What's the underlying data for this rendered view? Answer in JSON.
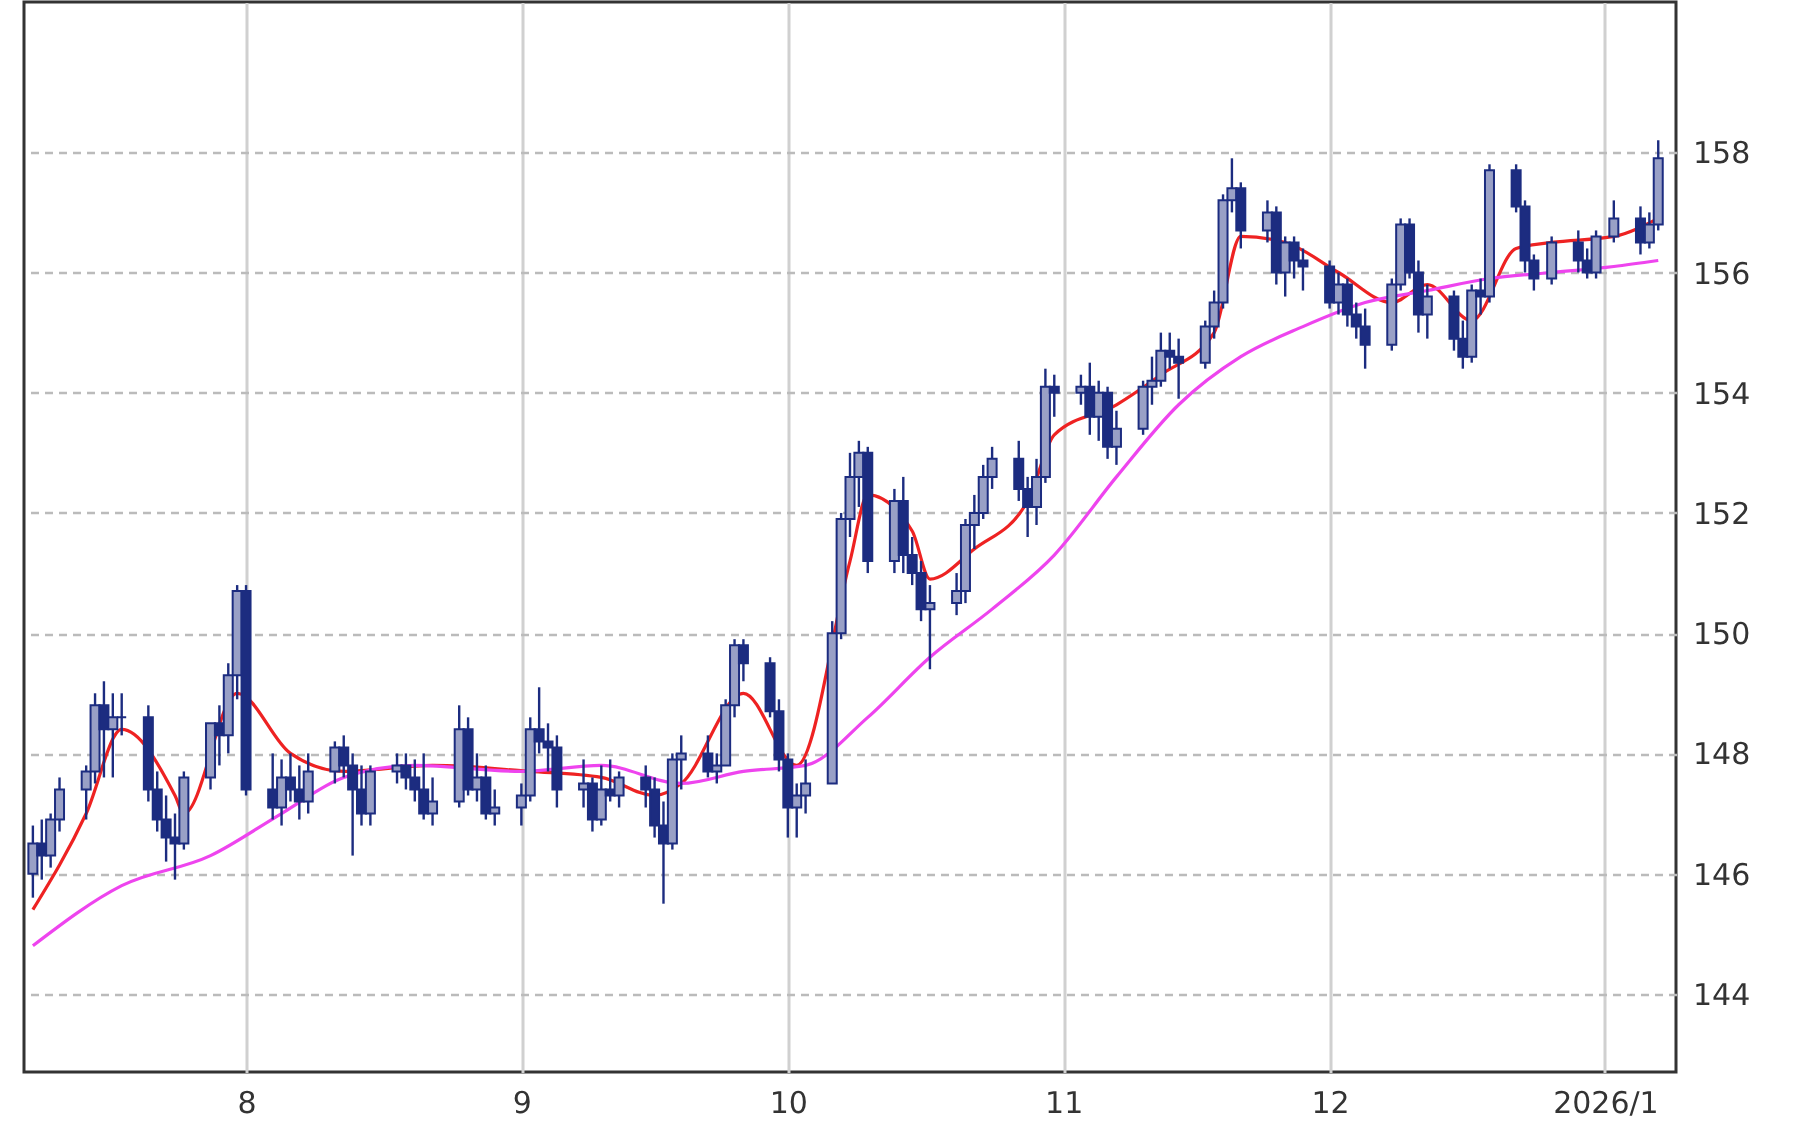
{
  "chart_data": {
    "type": "candlestick",
    "x": [
      "2025-07-08",
      "2025-07-09",
      "2025-07-10",
      "2025-07-11",
      "2025-07-14",
      "2025-07-15",
      "2025-07-16",
      "2025-07-17",
      "2025-07-18",
      "2025-07-21",
      "2025-07-22",
      "2025-07-23",
      "2025-07-24",
      "2025-07-25",
      "2025-07-28",
      "2025-07-29",
      "2025-07-30",
      "2025-07-31",
      "2025-08-01",
      "2025-08-04",
      "2025-08-05",
      "2025-08-06",
      "2025-08-07",
      "2025-08-08",
      "2025-08-11",
      "2025-08-12",
      "2025-08-13",
      "2025-08-14",
      "2025-08-15",
      "2025-08-18",
      "2025-08-19",
      "2025-08-20",
      "2025-08-21",
      "2025-08-22",
      "2025-08-25",
      "2025-08-26",
      "2025-08-27",
      "2025-08-28",
      "2025-08-29",
      "2025-09-01",
      "2025-09-02",
      "2025-09-03",
      "2025-09-04",
      "2025-09-05",
      "2025-09-08",
      "2025-09-09",
      "2025-09-10",
      "2025-09-11",
      "2025-09-12",
      "2025-09-15",
      "2025-09-16",
      "2025-09-17",
      "2025-09-18",
      "2025-09-19",
      "2025-09-22",
      "2025-09-23",
      "2025-09-24",
      "2025-09-25",
      "2025-09-26",
      "2025-09-29",
      "2025-09-30",
      "2025-10-01",
      "2025-10-02",
      "2025-10-03",
      "2025-10-06",
      "2025-10-07",
      "2025-10-08",
      "2025-10-09",
      "2025-10-10",
      "2025-10-13",
      "2025-10-14",
      "2025-10-15",
      "2025-10-16",
      "2025-10-17",
      "2025-10-20",
      "2025-10-21",
      "2025-10-22",
      "2025-10-23",
      "2025-10-24",
      "2025-10-27",
      "2025-10-28",
      "2025-10-29",
      "2025-10-30",
      "2025-10-31",
      "2025-11-03",
      "2025-11-04",
      "2025-11-05",
      "2025-11-06",
      "2025-11-07",
      "2025-11-10",
      "2025-11-11",
      "2025-11-12",
      "2025-11-13",
      "2025-11-14",
      "2025-11-17",
      "2025-11-18",
      "2025-11-19",
      "2025-11-20",
      "2025-11-21",
      "2025-11-24",
      "2025-11-25",
      "2025-11-26",
      "2025-11-27",
      "2025-11-28",
      "2025-12-01",
      "2025-12-02",
      "2025-12-03",
      "2025-12-04",
      "2025-12-05",
      "2025-12-08",
      "2025-12-09",
      "2025-12-10",
      "2025-12-11",
      "2025-12-12",
      "2025-12-15",
      "2025-12-16",
      "2025-12-17",
      "2025-12-18",
      "2025-12-19",
      "2025-12-22",
      "2025-12-23",
      "2025-12-24",
      "2025-12-26",
      "2025-12-29",
      "2025-12-30",
      "2025-12-31",
      "2026-01-02",
      "2026-01-05",
      "2026-01-06",
      "2026-01-07"
    ],
    "ohlc": [
      [
        146.0,
        146.8,
        145.6,
        146.5
      ],
      [
        146.5,
        146.9,
        145.9,
        146.3
      ],
      [
        146.3,
        147.0,
        146.1,
        146.9
      ],
      [
        146.9,
        147.6,
        146.7,
        147.4
      ],
      [
        147.4,
        147.8,
        146.9,
        147.7
      ],
      [
        147.7,
        149.0,
        147.5,
        148.8
      ],
      [
        148.8,
        149.2,
        147.6,
        148.4
      ],
      [
        148.4,
        149.0,
        147.6,
        148.6
      ],
      [
        148.6,
        149.0,
        148.3,
        148.6
      ],
      [
        148.6,
        148.8,
        147.2,
        147.4
      ],
      [
        147.4,
        147.7,
        146.7,
        146.9
      ],
      [
        146.9,
        147.3,
        146.2,
        146.6
      ],
      [
        146.6,
        147.0,
        145.9,
        146.5
      ],
      [
        146.5,
        147.7,
        146.4,
        147.6
      ],
      [
        147.6,
        148.5,
        147.4,
        148.5
      ],
      [
        148.5,
        148.8,
        147.8,
        148.3
      ],
      [
        148.3,
        149.5,
        148.0,
        149.3
      ],
      [
        149.3,
        150.8,
        148.9,
        150.7
      ],
      [
        150.7,
        150.8,
        147.3,
        147.4
      ],
      [
        147.4,
        148.0,
        146.9,
        147.1
      ],
      [
        147.1,
        147.9,
        146.8,
        147.6
      ],
      [
        147.6,
        148.0,
        147.2,
        147.4
      ],
      [
        147.4,
        147.8,
        146.9,
        147.2
      ],
      [
        147.2,
        148.0,
        147.0,
        147.7
      ],
      [
        147.7,
        148.2,
        147.5,
        148.1
      ],
      [
        148.1,
        148.3,
        147.6,
        147.8
      ],
      [
        147.8,
        148.0,
        146.3,
        147.4
      ],
      [
        147.4,
        147.8,
        146.8,
        147.0
      ],
      [
        147.0,
        147.8,
        146.8,
        147.7
      ],
      [
        147.7,
        148.0,
        147.5,
        147.8
      ],
      [
        147.8,
        148.0,
        147.4,
        147.6
      ],
      [
        147.6,
        147.9,
        147.2,
        147.4
      ],
      [
        147.4,
        148.0,
        146.9,
        147.0
      ],
      [
        147.0,
        147.6,
        146.8,
        147.2
      ],
      [
        147.2,
        148.8,
        147.1,
        148.4
      ],
      [
        148.4,
        148.6,
        147.3,
        147.4
      ],
      [
        147.4,
        148.0,
        147.2,
        147.6
      ],
      [
        147.6,
        147.8,
        146.9,
        147.0
      ],
      [
        147.0,
        147.4,
        146.8,
        147.1
      ],
      [
        147.1,
        147.5,
        146.8,
        147.3
      ],
      [
        147.3,
        148.6,
        147.2,
        148.4
      ],
      [
        148.4,
        149.1,
        148.0,
        148.2
      ],
      [
        148.2,
        148.5,
        147.7,
        148.1
      ],
      [
        148.1,
        148.3,
        147.1,
        147.4
      ],
      [
        147.4,
        147.9,
        147.1,
        147.5
      ],
      [
        147.5,
        147.6,
        146.7,
        146.9
      ],
      [
        146.9,
        147.8,
        146.8,
        147.4
      ],
      [
        147.4,
        147.9,
        147.2,
        147.3
      ],
      [
        147.3,
        147.7,
        147.1,
        147.6
      ],
      [
        147.6,
        147.8,
        147.1,
        147.4
      ],
      [
        147.4,
        147.6,
        146.6,
        146.8
      ],
      [
        146.8,
        147.2,
        145.5,
        146.5
      ],
      [
        146.5,
        148.0,
        146.4,
        147.9
      ],
      [
        147.9,
        148.3,
        147.4,
        148.0
      ],
      [
        148.0,
        148.3,
        147.6,
        147.7
      ],
      [
        147.7,
        148.0,
        147.5,
        147.8
      ],
      [
        147.8,
        148.9,
        147.8,
        148.8
      ],
      [
        148.8,
        149.9,
        148.6,
        149.8
      ],
      [
        149.8,
        149.9,
        149.2,
        149.5
      ],
      [
        149.5,
        149.6,
        148.6,
        148.7
      ],
      [
        148.7,
        148.9,
        147.7,
        147.9
      ],
      [
        147.9,
        148.0,
        146.6,
        147.1
      ],
      [
        147.1,
        147.5,
        146.6,
        147.3
      ],
      [
        147.3,
        147.9,
        147.0,
        147.5
      ],
      [
        147.5,
        150.2,
        147.5,
        150.0
      ],
      [
        150.0,
        152.0,
        149.9,
        151.9
      ],
      [
        151.9,
        153.0,
        151.6,
        152.6
      ],
      [
        152.6,
        153.2,
        152.1,
        153.0
      ],
      [
        153.0,
        153.1,
        151.0,
        151.2
      ],
      [
        151.2,
        152.4,
        151.0,
        152.2
      ],
      [
        152.2,
        152.6,
        151.0,
        151.3
      ],
      [
        151.3,
        151.6,
        150.8,
        151.0
      ],
      [
        151.0,
        151.2,
        150.2,
        150.4
      ],
      [
        150.4,
        150.8,
        149.4,
        150.5
      ],
      [
        150.5,
        151.0,
        150.3,
        150.7
      ],
      [
        150.7,
        151.9,
        150.5,
        151.8
      ],
      [
        151.8,
        152.3,
        151.4,
        152.0
      ],
      [
        152.0,
        152.8,
        151.9,
        152.6
      ],
      [
        152.6,
        153.1,
        152.4,
        152.9
      ],
      [
        152.9,
        153.2,
        152.2,
        152.4
      ],
      [
        152.4,
        152.6,
        151.6,
        152.1
      ],
      [
        152.1,
        152.9,
        151.8,
        152.6
      ],
      [
        152.6,
        154.4,
        152.5,
        154.1
      ],
      [
        154.1,
        154.3,
        153.6,
        154.0
      ],
      [
        154.0,
        154.3,
        153.8,
        154.1
      ],
      [
        154.1,
        154.5,
        153.3,
        153.6
      ],
      [
        153.6,
        154.2,
        153.2,
        154.0
      ],
      [
        154.0,
        154.1,
        152.9,
        153.1
      ],
      [
        153.1,
        153.7,
        152.8,
        153.4
      ],
      [
        153.4,
        154.2,
        153.3,
        154.1
      ],
      [
        154.1,
        154.6,
        153.8,
        154.2
      ],
      [
        154.2,
        155.0,
        154.1,
        154.7
      ],
      [
        154.7,
        155.0,
        154.4,
        154.6
      ],
      [
        154.6,
        154.9,
        153.9,
        154.5
      ],
      [
        154.5,
        155.2,
        154.4,
        155.1
      ],
      [
        155.1,
        155.7,
        154.9,
        155.5
      ],
      [
        155.5,
        157.3,
        155.4,
        157.2
      ],
      [
        157.2,
        157.9,
        157.0,
        157.4
      ],
      [
        157.4,
        157.5,
        156.4,
        156.7
      ],
      [
        156.7,
        157.2,
        156.5,
        157.0
      ],
      [
        157.0,
        157.1,
        155.8,
        156.0
      ],
      [
        156.0,
        156.6,
        155.6,
        156.5
      ],
      [
        156.5,
        156.6,
        155.9,
        156.2
      ],
      [
        156.2,
        156.4,
        155.7,
        156.1
      ],
      [
        156.1,
        156.2,
        155.4,
        155.5
      ],
      [
        155.5,
        156.0,
        155.3,
        155.8
      ],
      [
        155.8,
        155.9,
        155.1,
        155.3
      ],
      [
        155.3,
        155.5,
        154.9,
        155.1
      ],
      [
        155.1,
        155.4,
        154.4,
        154.8
      ],
      [
        154.8,
        155.9,
        154.7,
        155.8
      ],
      [
        155.8,
        156.9,
        155.7,
        156.8
      ],
      [
        156.8,
        156.9,
        155.9,
        156.0
      ],
      [
        156.0,
        156.2,
        155.0,
        155.3
      ],
      [
        155.3,
        155.8,
        154.9,
        155.6
      ],
      [
        155.6,
        155.7,
        154.7,
        154.9
      ],
      [
        154.9,
        155.2,
        154.4,
        154.6
      ],
      [
        154.6,
        155.8,
        154.5,
        155.7
      ],
      [
        155.7,
        155.9,
        155.3,
        155.6
      ],
      [
        155.6,
        157.8,
        155.5,
        157.7
      ],
      [
        157.7,
        157.8,
        157.0,
        157.1
      ],
      [
        157.1,
        157.2,
        156.0,
        156.2
      ],
      [
        156.2,
        156.3,
        155.7,
        155.9
      ],
      [
        155.9,
        156.6,
        155.8,
        156.5
      ],
      [
        156.5,
        156.7,
        156.0,
        156.2
      ],
      [
        156.2,
        156.4,
        155.9,
        156.0
      ],
      [
        156.0,
        156.7,
        155.9,
        156.6
      ],
      [
        156.6,
        157.2,
        156.5,
        156.9
      ],
      [
        156.9,
        157.1,
        156.3,
        156.5
      ],
      [
        156.5,
        157.0,
        156.4,
        156.8
      ],
      [
        156.8,
        158.2,
        156.7,
        157.9
      ]
    ],
    "color": "#1c2c80",
    "series": [
      {
        "type": "line",
        "color": "#ee2222",
        "x": [
          "2025-07-08",
          "2025-07-14",
          "2025-07-18",
          "2025-07-24",
          "2025-07-25",
          "2025-07-31",
          "2025-08-06",
          "2025-08-12",
          "2025-08-22",
          "2025-09-02",
          "2025-09-10",
          "2025-09-16",
          "2025-09-19",
          "2025-09-26",
          "2025-10-02",
          "2025-10-08",
          "2025-10-10",
          "2025-10-15",
          "2025-10-17",
          "2025-10-22",
          "2025-10-28",
          "2025-10-31",
          "2025-11-07",
          "2025-11-12",
          "2025-11-18",
          "2025-11-21",
          "2025-11-26",
          "2025-12-02",
          "2025-12-08",
          "2025-12-12",
          "2025-12-17",
          "2025-12-22",
          "2025-12-26",
          "2026-01-02",
          "2026-01-07"
        ],
        "values": [
          145.4,
          147.0,
          148.4,
          147.3,
          147.0,
          149.0,
          148.0,
          147.7,
          147.8,
          147.7,
          147.6,
          147.3,
          147.5,
          149.0,
          147.8,
          151.2,
          152.3,
          151.7,
          150.9,
          151.4,
          152.2,
          153.3,
          153.8,
          154.3,
          155.0,
          156.6,
          156.5,
          156.0,
          155.5,
          155.8,
          155.2,
          156.4,
          156.5,
          156.6,
          156.9
        ]
      },
      {
        "type": "line",
        "color": "#ee44ee",
        "x": [
          "2025-07-08",
          "2025-07-18",
          "2025-07-28",
          "2025-08-05",
          "2025-08-12",
          "2025-08-20",
          "2025-09-01",
          "2025-09-10",
          "2025-09-19",
          "2025-09-26",
          "2025-10-03",
          "2025-10-10",
          "2025-10-17",
          "2025-10-24",
          "2025-10-31",
          "2025-11-07",
          "2025-11-14",
          "2025-11-21",
          "2025-11-28",
          "2025-12-05",
          "2025-12-12",
          "2025-12-19",
          "2025-12-26",
          "2026-01-02",
          "2026-01-07"
        ],
        "values": [
          144.8,
          145.8,
          146.3,
          147.0,
          147.6,
          147.8,
          147.7,
          147.8,
          147.5,
          147.7,
          147.8,
          148.6,
          149.6,
          150.4,
          151.3,
          152.6,
          153.8,
          154.6,
          155.1,
          155.5,
          155.7,
          155.9,
          156.0,
          156.1,
          156.2
        ]
      }
    ],
    "xlim": [
      "2025-07-07",
      "2026-01-09"
    ],
    "xticks": [
      {
        "value": "2025-08-01",
        "label": "8"
      },
      {
        "value": "2025-09-01",
        "label": "9"
      },
      {
        "value": "2025-10-01",
        "label": "10"
      },
      {
        "value": "2025-11-01",
        "label": "11"
      },
      {
        "value": "2025-12-01",
        "label": "12"
      },
      {
        "value": "2026-01-01",
        "label": "2026/1"
      }
    ],
    "ylim": [
      142.7,
      160.5
    ],
    "yticks": [
      144,
      146,
      148,
      150,
      152,
      154,
      156,
      158
    ],
    "grid": true
  }
}
